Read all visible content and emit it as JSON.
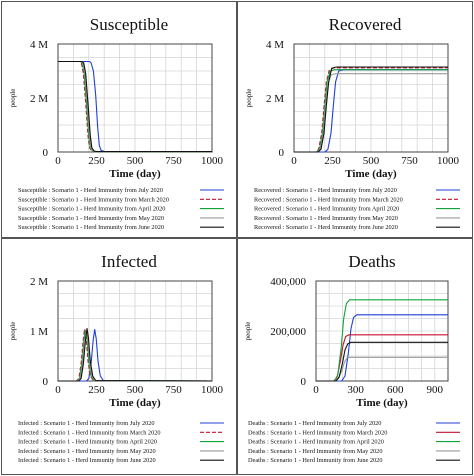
{
  "colors": {
    "July": "#1f3fd8",
    "March": "#c8102e",
    "April": "#11a33a",
    "May": "#9a9a9a",
    "June": "#111111"
  },
  "chart_data": [
    {
      "id": "susceptible",
      "type": "line",
      "title": "Susceptible",
      "xlabel": "Time (day)",
      "ylabel": "people",
      "xlim": [
        0,
        1000
      ],
      "ylim": [
        0,
        4000000
      ],
      "x_ticks": [
        "0",
        "250",
        "500",
        "750",
        "1000"
      ],
      "x_tick_values": [
        0,
        250,
        500,
        750,
        1000
      ],
      "y_ticks": [
        "0",
        "2 M",
        "4 M"
      ],
      "y_tick_values": [
        0,
        2000000,
        4000000
      ],
      "grid": true,
      "legend_placement": "below",
      "series": [
        {
          "name": "Susceptible : Scenario 1 - Herd Immunity from July 2020",
          "color_key": "July",
          "dash": "",
          "points": [
            [
              0,
              3350000
            ],
            [
              205,
              3350000
            ],
            [
              215,
              3300000
            ],
            [
              230,
              3000000
            ],
            [
              245,
              2100000
            ],
            [
              258,
              900000
            ],
            [
              268,
              250000
            ],
            [
              280,
              60000
            ],
            [
              300,
              20000
            ],
            [
              1000,
              20000
            ]
          ]
        },
        {
          "name": "Susceptible : Scenario 1 - Herd Immunity from March 2020",
          "color_key": "March",
          "dash": "4,2",
          "points": [
            [
              0,
              3350000
            ],
            [
              140,
              3350000
            ],
            [
              152,
              3300000
            ],
            [
              165,
              2900000
            ],
            [
              180,
              1800000
            ],
            [
              195,
              600000
            ],
            [
              205,
              150000
            ],
            [
              220,
              30000
            ],
            [
              240,
              10000
            ],
            [
              1000,
              10000
            ]
          ]
        },
        {
          "name": "Susceptible : Scenario 1 - Herd Immunity from April 2020",
          "color_key": "April",
          "dash": "",
          "points": [
            [
              0,
              3350000
            ],
            [
              145,
              3350000
            ],
            [
              157,
              3300000
            ],
            [
              170,
              2900000
            ],
            [
              185,
              1800000
            ],
            [
              200,
              600000
            ],
            [
              210,
              150000
            ],
            [
              225,
              30000
            ],
            [
              245,
              12000
            ],
            [
              1000,
              12000
            ]
          ]
        },
        {
          "name": "Susceptible : Scenario 1 - Herd Immunity from May 2020",
          "color_key": "May",
          "dash": "",
          "points": [
            [
              0,
              3350000
            ],
            [
              150,
              3350000
            ],
            [
              162,
              3300000
            ],
            [
              175,
              2900000
            ],
            [
              190,
              1800000
            ],
            [
              205,
              600000
            ],
            [
              215,
              150000
            ],
            [
              230,
              30000
            ],
            [
              250,
              15000
            ],
            [
              1000,
              15000
            ]
          ]
        },
        {
          "name": "Susceptible : Scenario 1 - Herd Immunity from June 2020",
          "color_key": "June",
          "dash": "",
          "points": [
            [
              0,
              3350000
            ],
            [
              155,
              3350000
            ],
            [
              167,
              3300000
            ],
            [
              180,
              2900000
            ],
            [
              195,
              1800000
            ],
            [
              210,
              600000
            ],
            [
              220,
              150000
            ],
            [
              235,
              30000
            ],
            [
              255,
              15000
            ],
            [
              1000,
              15000
            ]
          ]
        }
      ]
    },
    {
      "id": "recovered",
      "type": "line",
      "title": "Recovered",
      "xlabel": "Time (day)",
      "ylabel": "people",
      "xlim": [
        0,
        1000
      ],
      "ylim": [
        0,
        4000000
      ],
      "x_ticks": [
        "0",
        "250",
        "500",
        "750",
        "1000"
      ],
      "x_tick_values": [
        0,
        250,
        500,
        750,
        1000
      ],
      "y_ticks": [
        "0",
        "2 M",
        "4 M"
      ],
      "y_tick_values": [
        0,
        2000000,
        4000000
      ],
      "grid": true,
      "legend_placement": "below",
      "series": [
        {
          "name": "Recovered : Scenario 1 - Herd Immunity from July 2020",
          "color_key": "July",
          "dash": "",
          "points": [
            [
              0,
              0
            ],
            [
              200,
              0
            ],
            [
              220,
              100000
            ],
            [
              240,
              700000
            ],
            [
              255,
              1700000
            ],
            [
              270,
              2600000
            ],
            [
              290,
              3000000
            ],
            [
              320,
              3050000
            ],
            [
              1000,
              3050000
            ]
          ]
        },
        {
          "name": "Recovered : Scenario 1 - Herd Immunity from March 2020",
          "color_key": "March",
          "dash": "4,2",
          "points": [
            [
              0,
              0
            ],
            [
              140,
              0
            ],
            [
              160,
              100000
            ],
            [
              180,
              700000
            ],
            [
              195,
              1700000
            ],
            [
              210,
              2600000
            ],
            [
              230,
              3050000
            ],
            [
              260,
              3120000
            ],
            [
              1000,
              3120000
            ]
          ]
        },
        {
          "name": "Recovered : Scenario 1 - Herd Immunity from April 2020",
          "color_key": "April",
          "dash": "",
          "points": [
            [
              0,
              0
            ],
            [
              145,
              0
            ],
            [
              165,
              100000
            ],
            [
              185,
              700000
            ],
            [
              200,
              1700000
            ],
            [
              215,
              2600000
            ],
            [
              235,
              3000000
            ],
            [
              265,
              3050000
            ],
            [
              1000,
              3050000
            ]
          ]
        },
        {
          "name": "Recovered : Scenario 1 - Herd Immunity from May 2020",
          "color_key": "May",
          "dash": "",
          "points": [
            [
              0,
              0
            ],
            [
              150,
              0
            ],
            [
              170,
              100000
            ],
            [
              190,
              700000
            ],
            [
              205,
              1700000
            ],
            [
              220,
              2500000
            ],
            [
              240,
              2850000
            ],
            [
              270,
              2900000
            ],
            [
              1000,
              2900000
            ]
          ]
        },
        {
          "name": "Recovered : Scenario 1 - Herd Immunity from June 2020",
          "color_key": "June",
          "dash": "",
          "points": [
            [
              0,
              0
            ],
            [
              155,
              0
            ],
            [
              175,
              100000
            ],
            [
              195,
              700000
            ],
            [
              210,
              1700000
            ],
            [
              225,
              2600000
            ],
            [
              245,
              3100000
            ],
            [
              275,
              3150000
            ],
            [
              1000,
              3150000
            ]
          ]
        }
      ]
    },
    {
      "id": "infected",
      "type": "line",
      "title": "Infected",
      "xlabel": "Time (day)",
      "ylabel": "people",
      "xlim": [
        0,
        1000
      ],
      "ylim": [
        0,
        2000000
      ],
      "x_ticks": [
        "0",
        "250",
        "500",
        "750",
        "1000"
      ],
      "x_tick_values": [
        0,
        250,
        500,
        750,
        1000
      ],
      "y_ticks": [
        "0",
        "1 M",
        "2 M"
      ],
      "y_tick_values": [
        0,
        1000000,
        2000000
      ],
      "grid": true,
      "legend_placement": "below",
      "series": [
        {
          "name": "Infected : Scenario 1 - Herd Immunity from July 2020",
          "color_key": "July",
          "dash": "",
          "points": [
            [
              0,
              0
            ],
            [
              185,
              0
            ],
            [
              200,
              50000
            ],
            [
              215,
              350000
            ],
            [
              228,
              800000
            ],
            [
              238,
              1030000
            ],
            [
              248,
              850000
            ],
            [
              260,
              400000
            ],
            [
              275,
              100000
            ],
            [
              295,
              10000
            ],
            [
              1000,
              0
            ]
          ]
        },
        {
          "name": "Infected : Scenario 1 - Herd Immunity from March 2020",
          "color_key": "March",
          "dash": "4,2",
          "points": [
            [
              0,
              0
            ],
            [
              120,
              0
            ],
            [
              135,
              50000
            ],
            [
              150,
              350000
            ],
            [
              163,
              800000
            ],
            [
              173,
              1040000
            ],
            [
              183,
              850000
            ],
            [
              195,
              400000
            ],
            [
              210,
              100000
            ],
            [
              230,
              10000
            ],
            [
              1000,
              0
            ]
          ]
        },
        {
          "name": "Infected : Scenario 1 - Herd Immunity from April 2020",
          "color_key": "April",
          "dash": "",
          "points": [
            [
              0,
              0
            ],
            [
              125,
              0
            ],
            [
              140,
              50000
            ],
            [
              155,
              350000
            ],
            [
              168,
              800000
            ],
            [
              178,
              1010000
            ],
            [
              188,
              850000
            ],
            [
              200,
              400000
            ],
            [
              215,
              100000
            ],
            [
              235,
              10000
            ],
            [
              1000,
              0
            ]
          ]
        },
        {
          "name": "Infected : Scenario 1 - Herd Immunity from May 2020",
          "color_key": "May",
          "dash": "",
          "points": [
            [
              0,
              0
            ],
            [
              130,
              0
            ],
            [
              145,
              50000
            ],
            [
              160,
              350000
            ],
            [
              173,
              800000
            ],
            [
              183,
              980000
            ],
            [
              193,
              850000
            ],
            [
              205,
              400000
            ],
            [
              220,
              100000
            ],
            [
              240,
              10000
            ],
            [
              1000,
              0
            ]
          ]
        },
        {
          "name": "Infected : Scenario 1 - Herd Immunity from June 2020",
          "color_key": "June",
          "dash": "",
          "points": [
            [
              0,
              0
            ],
            [
              135,
              0
            ],
            [
              150,
              50000
            ],
            [
              165,
              350000
            ],
            [
              178,
              800000
            ],
            [
              188,
              1050000
            ],
            [
              198,
              850000
            ],
            [
              210,
              400000
            ],
            [
              225,
              100000
            ],
            [
              245,
              10000
            ],
            [
              1000,
              0
            ]
          ]
        }
      ]
    },
    {
      "id": "deaths",
      "type": "line",
      "title": "Deaths",
      "xlabel": "Time (day)",
      "ylabel": "people",
      "xlim": [
        0,
        1000
      ],
      "ylim": [
        0,
        400000
      ],
      "x_ticks": [
        "0",
        "300",
        "600",
        "900"
      ],
      "x_tick_values": [
        0,
        300,
        600,
        900
      ],
      "y_ticks": [
        "0",
        "200,000",
        "400,000"
      ],
      "y_tick_values": [
        0,
        200000,
        400000
      ],
      "grid": true,
      "legend_placement": "below",
      "series": [
        {
          "name": "Deaths : Scenario 1 - Herd Immunity from July 2020",
          "color_key": "July",
          "dash": "",
          "points": [
            [
              0,
              0
            ],
            [
              195,
              0
            ],
            [
              220,
              20000
            ],
            [
              245,
              110000
            ],
            [
              265,
              210000
            ],
            [
              285,
              255000
            ],
            [
              310,
              265000
            ],
            [
              1000,
              265000
            ]
          ]
        },
        {
          "name": "Deaths : Scenario 1 - Herd Immunity from March 2020",
          "color_key": "March",
          "dash": "",
          "points": [
            [
              0,
              0
            ],
            [
              135,
              0
            ],
            [
              160,
              15000
            ],
            [
              185,
              80000
            ],
            [
              205,
              145000
            ],
            [
              225,
              178000
            ],
            [
              250,
              185000
            ],
            [
              1000,
              185000
            ]
          ]
        },
        {
          "name": "Deaths : Scenario 1 - Herd Immunity from April 2020",
          "color_key": "April",
          "dash": "",
          "points": [
            [
              0,
              0
            ],
            [
              140,
              0
            ],
            [
              165,
              25000
            ],
            [
              190,
              130000
            ],
            [
              210,
              250000
            ],
            [
              230,
              310000
            ],
            [
              255,
              325000
            ],
            [
              1000,
              325000
            ]
          ]
        },
        {
          "name": "Deaths : Scenario 1 - Herd Immunity from May 2020",
          "color_key": "May",
          "dash": "",
          "points": [
            [
              0,
              0
            ],
            [
              145,
              0
            ],
            [
              170,
              10000
            ],
            [
              195,
              40000
            ],
            [
              215,
              75000
            ],
            [
              235,
              92000
            ],
            [
              260,
              95000
            ],
            [
              1000,
              95000
            ]
          ]
        },
        {
          "name": "Deaths : Scenario 1 - Herd Immunity from June 2020",
          "color_key": "June",
          "dash": "",
          "points": [
            [
              0,
              0
            ],
            [
              150,
              0
            ],
            [
              175,
              15000
            ],
            [
              200,
              70000
            ],
            [
              220,
              125000
            ],
            [
              240,
              148000
            ],
            [
              265,
              155000
            ],
            [
              1000,
              155000
            ]
          ]
        }
      ]
    }
  ]
}
